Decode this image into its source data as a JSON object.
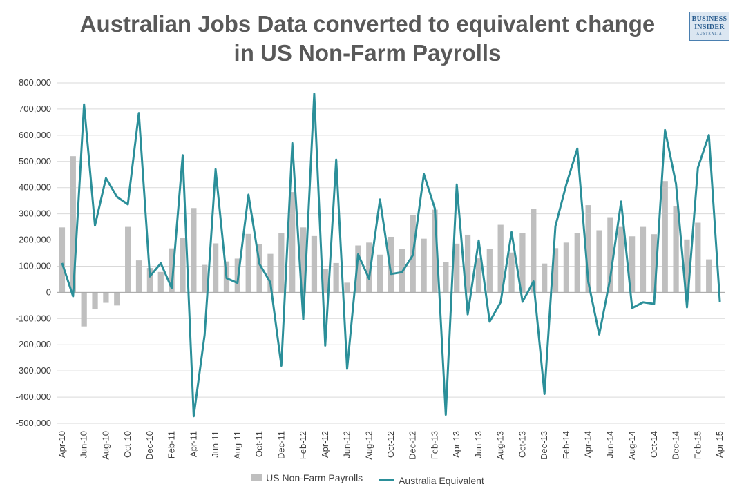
{
  "title_lines": [
    "Australian Jobs Data converted to equivalent change",
    "in US Non-Farm Payrolls"
  ],
  "logo": {
    "line1": "BUSINESS",
    "line2": "INSIDER",
    "line3": "AUSTRALIA"
  },
  "colors": {
    "bars": "#bfbfbf",
    "line": "#2b8f99",
    "grid": "#d9d9d9",
    "axis": "#a6a6a6"
  },
  "chart_data": {
    "type": "bar",
    "title": "Australian Jobs Data converted to equivalent change in US Non-Farm Payrolls",
    "ylim": [
      -500000,
      800000
    ],
    "yticks": [
      "800,000",
      "700,000",
      "600,000",
      "500,000",
      "400,000",
      "300,000",
      "200,000",
      "100,000",
      "0",
      "-100,000",
      "-200,000",
      "-300,000",
      "-400,000",
      "-500,000"
    ],
    "ytick_values": [
      800000,
      700000,
      600000,
      500000,
      400000,
      300000,
      200000,
      100000,
      0,
      -100000,
      -200000,
      -300000,
      -400000,
      -500000
    ],
    "grid": true,
    "legend_position": "bottom",
    "categories": [
      "Apr-10",
      "May-10",
      "Jun-10",
      "Jul-10",
      "Aug-10",
      "Sep-10",
      "Oct-10",
      "Nov-10",
      "Dec-10",
      "Jan-11",
      "Feb-11",
      "Mar-11",
      "Apr-11",
      "May-11",
      "Jun-11",
      "Jul-11",
      "Aug-11",
      "Sep-11",
      "Oct-11",
      "Nov-11",
      "Dec-11",
      "Jan-12",
      "Feb-12",
      "Mar-12",
      "Apr-12",
      "May-12",
      "Jun-12",
      "Jul-12",
      "Aug-12",
      "Sep-12",
      "Oct-12",
      "Nov-12",
      "Dec-12",
      "Jan-13",
      "Feb-13",
      "Mar-13",
      "Apr-13",
      "May-13",
      "Jun-13",
      "Jul-13",
      "Aug-13",
      "Sep-13",
      "Oct-13",
      "Nov-13",
      "Dec-13",
      "Jan-14",
      "Feb-14",
      "Mar-14",
      "Apr-14",
      "May-14",
      "Jun-14",
      "Jul-14",
      "Aug-14",
      "Sep-14",
      "Oct-14",
      "Nov-14",
      "Dec-14",
      "Jan-15",
      "Feb-15",
      "Mar-15",
      "Apr-15"
    ],
    "tick_labels": [
      "Apr-10",
      "Jun-10",
      "Aug-10",
      "Oct-10",
      "Dec-10",
      "Feb-11",
      "Apr-11",
      "Jun-11",
      "Aug-11",
      "Oct-11",
      "Dec-11",
      "Feb-12",
      "Apr-12",
      "Jun-12",
      "Aug-12",
      "Oct-12",
      "Dec-12",
      "Feb-13",
      "Apr-13",
      "Jun-13",
      "Aug-13",
      "Oct-13",
      "Dec-13",
      "Feb-14",
      "Apr-14",
      "Jun-14",
      "Aug-14",
      "Oct-14",
      "Dec-14",
      "Feb-15",
      "Apr-15"
    ],
    "series": [
      {
        "name": "US Non-Farm Payrolls",
        "type": "bar",
        "values": [
          248000,
          520000,
          -130000,
          -65000,
          -40000,
          -50000,
          250000,
          122000,
          93000,
          78000,
          168000,
          208000,
          322000,
          105000,
          187000,
          118000,
          129000,
          223000,
          184000,
          147000,
          226000,
          383000,
          248000,
          215000,
          90000,
          112000,
          37000,
          179000,
          190000,
          144000,
          212000,
          166000,
          294000,
          205000,
          316000,
          116000,
          186000,
          220000,
          130000,
          166000,
          258000,
          152000,
          227000,
          320000,
          110000,
          169000,
          190000,
          226000,
          333000,
          237000,
          287000,
          250000,
          214000,
          250000,
          222000,
          425000,
          329000,
          202000,
          266000,
          126000,
          0
        ]
      },
      {
        "name": "Australia Equivalent",
        "type": "line",
        "values": [
          112000,
          -15000,
          718000,
          255000,
          436000,
          365000,
          336000,
          685000,
          61000,
          111000,
          16000,
          524000,
          -473000,
          -163000,
          470000,
          54000,
          36000,
          373000,
          108000,
          38000,
          -280000,
          570000,
          -103000,
          758000,
          -203000,
          507000,
          -292000,
          145000,
          52000,
          355000,
          70000,
          77000,
          142000,
          452000,
          320000,
          -467000,
          412000,
          -84000,
          198000,
          -112000,
          -38000,
          230000,
          -36000,
          42000,
          -388000,
          252000,
          413000,
          549000,
          40000,
          -161000,
          55000,
          347000,
          -60000,
          -38000,
          -44000,
          620000,
          415000,
          -57000,
          476000,
          601000,
          -36000
        ]
      }
    ]
  }
}
